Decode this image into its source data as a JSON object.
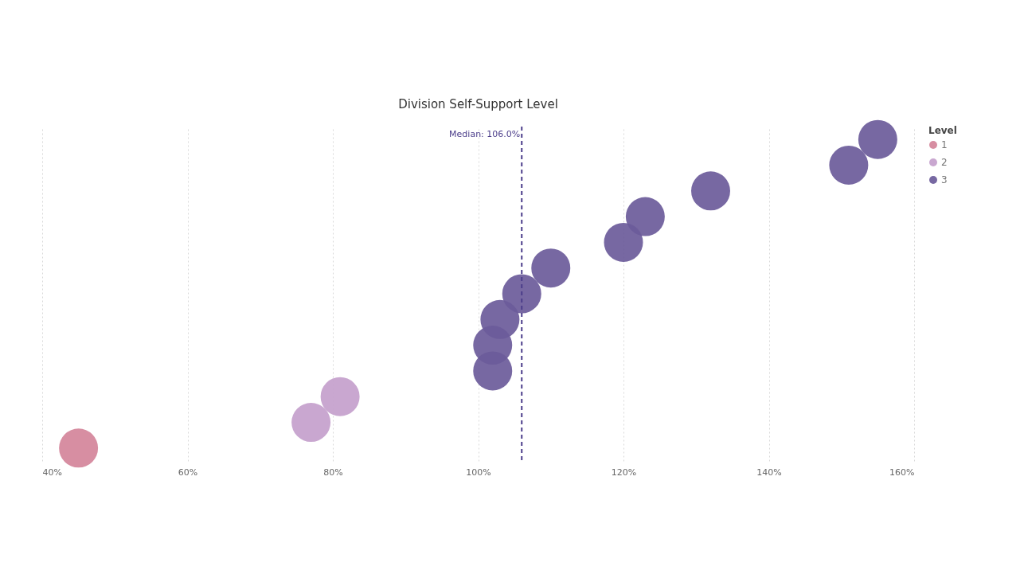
{
  "chart_data": {
    "type": "scatter",
    "title": "Division Self-Support Level",
    "orientation": "horizontal",
    "categories": [
      null,
      null,
      null,
      null,
      null,
      null,
      null,
      null,
      null,
      null,
      null,
      null,
      null
    ],
    "series": [
      {
        "name": "1",
        "color": "#d4849a",
        "values": [
          null,
          null,
          null,
          null,
          null,
          null,
          null,
          null,
          null,
          null,
          null,
          null,
          45
        ]
      },
      {
        "name": "2",
        "color": "#c49fcc",
        "values": [
          null,
          null,
          null,
          null,
          null,
          null,
          null,
          null,
          null,
          null,
          81,
          77,
          null
        ]
      },
      {
        "name": "3",
        "color": "#6b5b9a",
        "values": [
          155,
          151,
          132,
          123,
          120,
          110,
          106,
          103,
          102,
          102,
          null,
          null,
          null
        ]
      }
    ],
    "xlim": [
      40,
      160
    ],
    "xticks": [
      {
        "value": 40,
        "label": "40%"
      },
      {
        "value": 60,
        "label": "60%"
      },
      {
        "value": 80,
        "label": "80%"
      },
      {
        "value": 100,
        "label": "100%"
      },
      {
        "value": 120,
        "label": "120%"
      },
      {
        "value": 140,
        "label": "140%"
      },
      {
        "value": 160,
        "label": "160%"
      }
    ],
    "ref_lines": [
      {
        "axis": "x",
        "value": 106,
        "label": "Median: 106.0%",
        "color": "#4b3d8a",
        "line_style": "dashed"
      }
    ],
    "legend_title": "Level",
    "legend": "top right",
    "grid": "x",
    "marker": "circle",
    "tick_labels": "x"
  }
}
